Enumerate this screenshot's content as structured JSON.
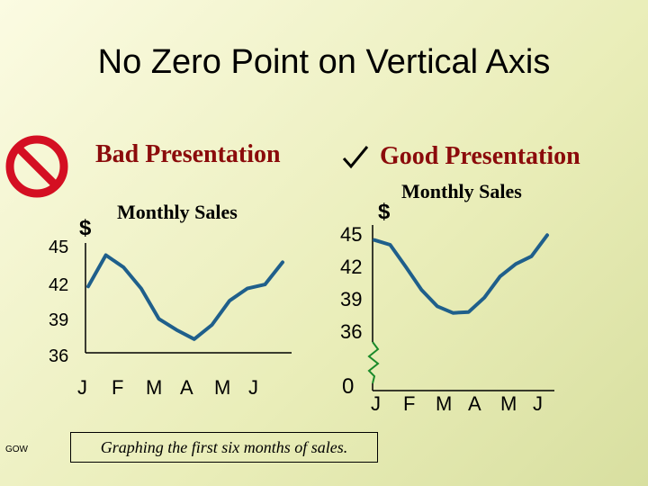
{
  "slide": {
    "title": "No Zero Point on Vertical Axis",
    "caption": "Graphing the first six months of sales.",
    "footer_mark": "GOW"
  },
  "bad": {
    "heading": "Bad Presentation",
    "icon": "prohibited-icon",
    "icon_color": "#d40f22"
  },
  "good": {
    "heading": "Good Presentation",
    "icon": "check-mark-icon",
    "heading_color": "#8b0b0b"
  },
  "chart_data": [
    {
      "type": "line",
      "title": "Monthly Sales",
      "ylabel": "$",
      "yticks": [
        "45",
        "42",
        "39",
        "36"
      ],
      "ylim": [
        36,
        46.5
      ],
      "categories": [
        "J",
        "F",
        "M",
        "A",
        "M",
        "J"
      ],
      "x": [
        0,
        0.5,
        1,
        1.5,
        2,
        2.5,
        3,
        3.5,
        4,
        4.5,
        5,
        5.5
      ],
      "values": [
        42.2,
        45.3,
        44.1,
        42.0,
        39.0,
        37.9,
        37.0,
        38.4,
        40.8,
        42.0,
        42.4,
        44.6
      ],
      "line_color": "#1f5f8b"
    },
    {
      "type": "line",
      "title": "Monthly Sales",
      "ylabel": "$",
      "yticks": [
        "45",
        "42",
        "39",
        "36",
        "0"
      ],
      "ylim": [
        36,
        46.5
      ],
      "axis_break": true,
      "categories": [
        "J",
        "F",
        "M",
        "A",
        "M",
        "J"
      ],
      "x": [
        0,
        0.5,
        1,
        1.5,
        2,
        2.5,
        3,
        3.5,
        4,
        4.5,
        5,
        5.5
      ],
      "values": [
        45.5,
        45.0,
        42.7,
        40.3,
        38.6,
        37.9,
        38.0,
        39.5,
        41.7,
        43.0,
        43.8,
        46.0
      ],
      "line_color": "#1f5f8b"
    }
  ]
}
